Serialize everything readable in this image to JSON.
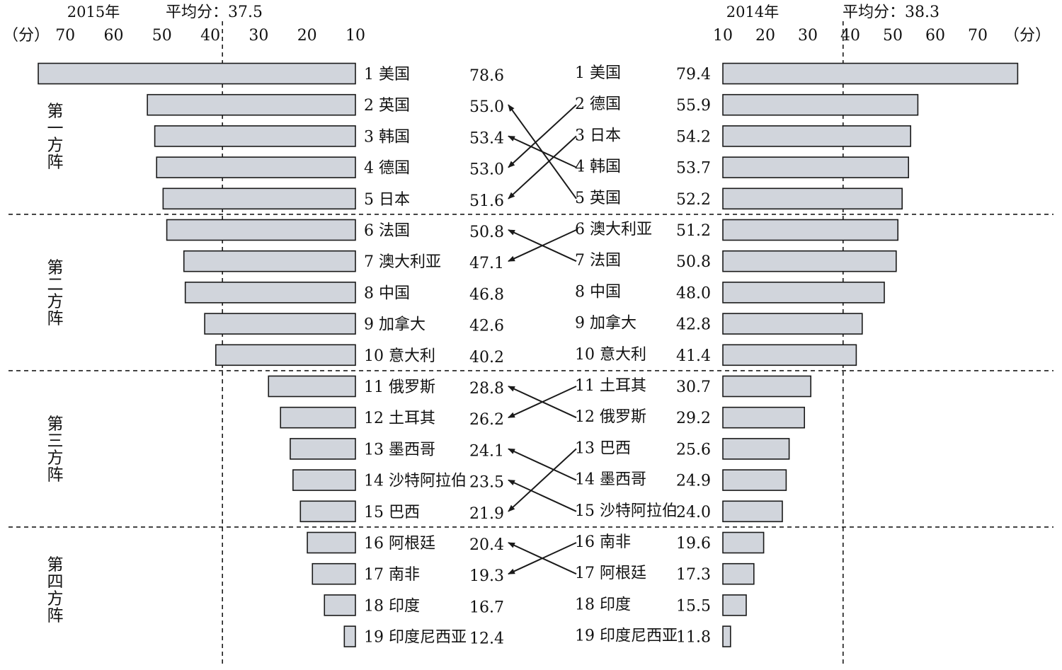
{
  "chart_data": {
    "type": "bar",
    "unit_label": "（分）",
    "left": {
      "year_label": "2015年",
      "avg_label": "平均分：37.5",
      "average": 37.5,
      "xlim": [
        10,
        70
      ],
      "ticks": [
        "70",
        "60",
        "50",
        "40",
        "30",
        "20",
        "10"
      ],
      "tick_values": [
        70,
        60,
        50,
        40,
        30,
        20,
        10
      ],
      "categories": [
        "1 美国",
        "2 英国",
        "3 韩国",
        "4 德国",
        "5 日本",
        "6 法国",
        "7 澳大利亚",
        "8 中国",
        "9 加拿大",
        "10 意大利",
        "11 俄罗斯",
        "12 土耳其",
        "13 墨西哥",
        "14 沙特阿拉伯",
        "15 巴西",
        "16 阿根廷",
        "17 南非",
        "18 印度",
        "19 印度尼西亚"
      ],
      "value_labels": [
        "78.6",
        "55.0",
        "53.4",
        "53.0",
        "51.6",
        "50.8",
        "47.1",
        "46.8",
        "42.6",
        "40.2",
        "28.8",
        "26.2",
        "24.1",
        "23.5",
        "21.9",
        "20.4",
        "19.3",
        "16.7",
        "12.4"
      ],
      "values": [
        78.6,
        55.0,
        53.4,
        53.0,
        51.6,
        50.8,
        47.1,
        46.8,
        42.6,
        40.2,
        28.8,
        26.2,
        24.1,
        23.5,
        21.9,
        20.4,
        19.3,
        16.7,
        12.4
      ]
    },
    "right": {
      "year_label": "2014年",
      "avg_label": "平均分：38.3",
      "average": 38.3,
      "xlim": [
        10,
        70
      ],
      "ticks": [
        "10",
        "20",
        "30",
        "40",
        "50",
        "60",
        "70"
      ],
      "tick_values": [
        10,
        20,
        30,
        40,
        50,
        60,
        70
      ],
      "categories": [
        "1 美国",
        "2 德国",
        "3 日本",
        "4 韩国",
        "5 英国",
        "6 澳大利亚",
        "7 法国",
        "8 中国",
        "9 加拿大",
        "10 意大利",
        "11 土耳其",
        "12 俄罗斯",
        "13 巴西",
        "14 墨西哥",
        "15 沙特阿拉伯",
        "16 南非",
        "17 阿根廷",
        "18 印度",
        "19 印度尼西亚"
      ],
      "value_labels": [
        "79.4",
        "55.9",
        "54.2",
        "53.7",
        "52.2",
        "51.2",
        "50.8",
        "48.0",
        "42.8",
        "41.4",
        "30.7",
        "29.2",
        "25.6",
        "24.9",
        "24.0",
        "19.6",
        "17.3",
        "15.5",
        "11.8"
      ],
      "values": [
        79.4,
        55.9,
        54.2,
        53.7,
        52.2,
        51.2,
        50.8,
        48.0,
        42.8,
        41.4,
        30.7,
        29.2,
        25.6,
        24.9,
        24.0,
        19.6,
        17.3,
        15.5,
        11.8
      ]
    },
    "tiers": [
      {
        "label": "第一方阵",
        "ranks": [
          1,
          5
        ]
      },
      {
        "label": "第二方阵",
        "ranks": [
          6,
          10
        ]
      },
      {
        "label": "第三方阵",
        "ranks": [
          11,
          15
        ]
      },
      {
        "label": "第四方阵",
        "ranks": [
          16,
          19
        ]
      }
    ],
    "rank_changes": [
      {
        "from_2014_rank": 5,
        "to_2015_rank": 2
      },
      {
        "from_2014_rank": 2,
        "to_2015_rank": 4
      },
      {
        "from_2014_rank": 4,
        "to_2015_rank": 3
      },
      {
        "from_2014_rank": 3,
        "to_2015_rank": 5
      },
      {
        "from_2014_rank": 7,
        "to_2015_rank": 6
      },
      {
        "from_2014_rank": 6,
        "to_2015_rank": 7
      },
      {
        "from_2014_rank": 12,
        "to_2015_rank": 11
      },
      {
        "from_2014_rank": 11,
        "to_2015_rank": 12
      },
      {
        "from_2014_rank": 14,
        "to_2015_rank": 13
      },
      {
        "from_2014_rank": 15,
        "to_2015_rank": 14
      },
      {
        "from_2014_rank": 13,
        "to_2015_rank": 15
      },
      {
        "from_2014_rank": 17,
        "to_2015_rank": 16
      },
      {
        "from_2014_rank": 16,
        "to_2015_rank": 17
      }
    ],
    "colors": {
      "bar_fill": "#d1d5dc",
      "bar_stroke": "#1a1a1a",
      "line": "#1a1a1a"
    }
  }
}
